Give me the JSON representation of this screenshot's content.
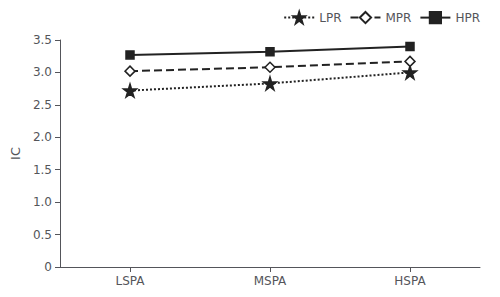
{
  "chart_data": {
    "type": "line",
    "categories": [
      "LSPA",
      "MSPA",
      "HSPA"
    ],
    "series": [
      {
        "name": "LPR",
        "color": "#222222",
        "values": [
          2.72,
          2.83,
          3.0
        ],
        "marker": "star",
        "line_style": "dotted"
      },
      {
        "name": "MPR",
        "color": "#222222",
        "values": [
          3.02,
          3.08,
          3.17
        ],
        "marker": "diamond",
        "line_style": "dashed"
      },
      {
        "name": "HPR",
        "color": "#222222",
        "values": [
          3.27,
          3.32,
          3.4
        ],
        "marker": "square",
        "line_style": "solid"
      }
    ],
    "ylabel": "IC",
    "ylim": [
      0,
      3.5
    ],
    "yticks": [
      0,
      0.5,
      {
        "value": 1,
        "label": "1.0"
      },
      1.5,
      {
        "value": 2,
        "label": "2.0"
      },
      2.5,
      {
        "value": 3,
        "label": "3.0"
      },
      3.5
    ],
    "grid": false,
    "legend": "upper right"
  }
}
